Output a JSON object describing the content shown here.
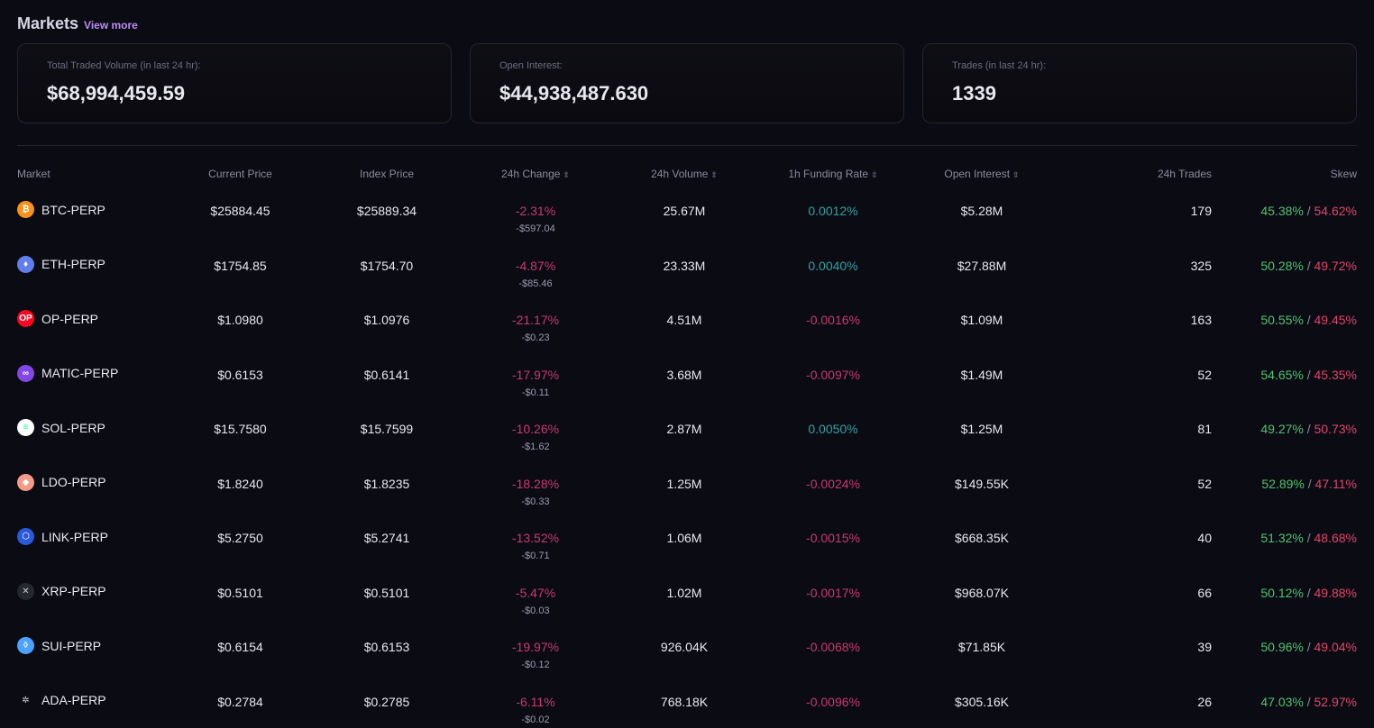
{
  "header": {
    "title": "Markets",
    "view_more": "View more"
  },
  "stats": [
    {
      "label": "Total Traded Volume (in last 24 hr):",
      "value": "$68,994,459.59"
    },
    {
      "label": "Open Interest:",
      "value": "$44,938,487.630"
    },
    {
      "label": "Trades (in last 24 hr):",
      "value": "1339"
    }
  ],
  "table": {
    "columns": [
      {
        "label": "Market",
        "sortable": false
      },
      {
        "label": "Current Price",
        "sortable": false
      },
      {
        "label": "Index Price",
        "sortable": false
      },
      {
        "label": "24h Change",
        "sortable": true
      },
      {
        "label": "24h Volume",
        "sortable": true
      },
      {
        "label": "1h Funding Rate",
        "sortable": true
      },
      {
        "label": "Open Interest",
        "sortable": true
      },
      {
        "label": "24h Trades",
        "sortable": false
      },
      {
        "label": "Skew",
        "sortable": false
      }
    ],
    "sort_glyph": "⇳",
    "skew_separator": " / ",
    "rows": [
      {
        "market": "BTC-PERP",
        "icon": "bitcoin-icon",
        "icon_color": "#f7931a",
        "icon_glyph": "₿",
        "price": "$25884.45",
        "index": "$25889.34",
        "change_pct": "-2.31%",
        "change_abs": "-$597.04",
        "volume": "25.67M",
        "funding": "0.0012%",
        "funding_sign": "pos",
        "oi": "$5.28M",
        "trades": "179",
        "skew_long": "45.38%",
        "skew_short": "54.62%"
      },
      {
        "market": "ETH-PERP",
        "icon": "ethereum-icon",
        "icon_color": "#627eea",
        "icon_glyph": "♦",
        "price": "$1754.85",
        "index": "$1754.70",
        "change_pct": "-4.87%",
        "change_abs": "-$85.46",
        "volume": "23.33M",
        "funding": "0.0040%",
        "funding_sign": "pos",
        "oi": "$27.88M",
        "trades": "325",
        "skew_long": "50.28%",
        "skew_short": "49.72%"
      },
      {
        "market": "OP-PERP",
        "icon": "optimism-icon",
        "icon_color": "#ff0420",
        "icon_glyph": "OP",
        "price": "$1.0980",
        "index": "$1.0976",
        "change_pct": "-21.17%",
        "change_abs": "-$0.23",
        "volume": "4.51M",
        "funding": "-0.0016%",
        "funding_sign": "neg",
        "oi": "$1.09M",
        "trades": "163",
        "skew_long": "50.55%",
        "skew_short": "49.45%"
      },
      {
        "market": "MATIC-PERP",
        "icon": "polygon-icon",
        "icon_color": "#8247e5",
        "icon_glyph": "∞",
        "price": "$0.6153",
        "index": "$0.6141",
        "change_pct": "-17.97%",
        "change_abs": "-$0.11",
        "volume": "3.68M",
        "funding": "-0.0097%",
        "funding_sign": "neg",
        "oi": "$1.49M",
        "trades": "52",
        "skew_long": "54.65%",
        "skew_short": "45.35%"
      },
      {
        "market": "SOL-PERP",
        "icon": "solana-icon",
        "icon_color": "#ffffff",
        "icon_glyph": "≡",
        "price": "$15.7580",
        "index": "$15.7599",
        "change_pct": "-10.26%",
        "change_abs": "-$1.62",
        "volume": "2.87M",
        "funding": "0.0050%",
        "funding_sign": "pos",
        "oi": "$1.25M",
        "trades": "81",
        "skew_long": "49.27%",
        "skew_short": "50.73%"
      },
      {
        "market": "LDO-PERP",
        "icon": "lido-icon",
        "icon_color": "#f69988",
        "icon_glyph": "◆",
        "price": "$1.8240",
        "index": "$1.8235",
        "change_pct": "-18.28%",
        "change_abs": "-$0.33",
        "volume": "1.25M",
        "funding": "-0.0024%",
        "funding_sign": "neg",
        "oi": "$149.55K",
        "trades": "52",
        "skew_long": "52.89%",
        "skew_short": "47.11%"
      },
      {
        "market": "LINK-PERP",
        "icon": "chainlink-icon",
        "icon_color": "#2a5ada",
        "icon_glyph": "⬡",
        "price": "$5.2750",
        "index": "$5.2741",
        "change_pct": "-13.52%",
        "change_abs": "-$0.71",
        "volume": "1.06M",
        "funding": "-0.0015%",
        "funding_sign": "neg",
        "oi": "$668.35K",
        "trades": "40",
        "skew_long": "51.32%",
        "skew_short": "48.68%"
      },
      {
        "market": "XRP-PERP",
        "icon": "xrp-icon",
        "icon_color": "#23292f",
        "icon_glyph": "✕",
        "price": "$0.5101",
        "index": "$0.5101",
        "change_pct": "-5.47%",
        "change_abs": "-$0.03",
        "volume": "1.02M",
        "funding": "-0.0017%",
        "funding_sign": "neg",
        "oi": "$968.07K",
        "trades": "66",
        "skew_long": "50.12%",
        "skew_short": "49.88%"
      },
      {
        "market": "SUI-PERP",
        "icon": "sui-icon",
        "icon_color": "#4da2ff",
        "icon_glyph": "◊",
        "price": "$0.6154",
        "index": "$0.6153",
        "change_pct": "-19.97%",
        "change_abs": "-$0.12",
        "volume": "926.04K",
        "funding": "-0.0068%",
        "funding_sign": "neg",
        "oi": "$71.85K",
        "trades": "39",
        "skew_long": "50.96%",
        "skew_short": "49.04%"
      },
      {
        "market": "ADA-PERP",
        "icon": "cardano-icon",
        "icon_color": "#0b0b14",
        "icon_glyph": "✲",
        "price": "$0.2784",
        "index": "$0.2785",
        "change_pct": "-6.11%",
        "change_abs": "-$0.02",
        "volume": "768.18K",
        "funding": "-0.0096%",
        "funding_sign": "neg",
        "oi": "$305.16K",
        "trades": "26",
        "skew_long": "47.03%",
        "skew_short": "52.97%"
      }
    ]
  }
}
